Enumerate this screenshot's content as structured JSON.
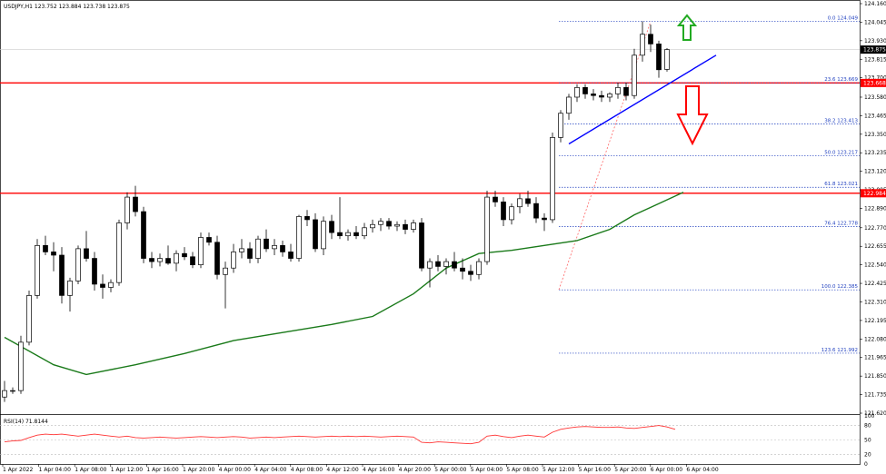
{
  "window": {
    "symbol_header": "USDJPY,H1  123.752 123.884 123.738 123.875",
    "rsi_header": "RSI(14) 71.8144"
  },
  "colors": {
    "background": "#ffffff",
    "grid": "#dddddd",
    "candle_border": "#000000",
    "bull_fill": "#ffffff",
    "bear_fill": "#000000",
    "moving_average": "#1a7a1a",
    "support_resistance": "#ff0000",
    "fib_levels": "#1f3fbf",
    "fib_diagonal": "#ff6666",
    "trendline": "#0000ff",
    "up_arrow": "#22aa22",
    "down_arrow": "#ff0000",
    "price_tag_bg": "#000000",
    "level_tag_bg": "#ff0000",
    "rsi_line": "#ff3333"
  },
  "icons": {
    "up_arrow": "arrow-up-outline-icon",
    "down_arrow": "arrow-down-outline-icon"
  },
  "chart_data": {
    "type": "candlestick",
    "symbol": "USDJPY",
    "timeframe": "H1",
    "ylim": [
      121.62,
      124.16
    ],
    "y_ticks": [
      "124.160",
      "124.045",
      "123.930",
      "123.815",
      "123.700",
      "123.580",
      "123.465",
      "123.350",
      "123.235",
      "123.120",
      "123.005",
      "122.890",
      "122.770",
      "122.655",
      "122.540",
      "122.425",
      "122.310",
      "122.195",
      "122.080",
      "121.965",
      "121.850",
      "121.735",
      "121.620"
    ],
    "x_ticks": [
      "1 Apr 2022",
      "1 Apr 04:00",
      "1 Apr 08:00",
      "1 Apr 12:00",
      "1 Apr 16:00",
      "1 Apr 20:00",
      "4 Apr 00:00",
      "4 Apr 04:00",
      "4 Apr 08:00",
      "4 Apr 12:00",
      "4 Apr 16:00",
      "4 Apr 20:00",
      "5 Apr 00:00",
      "5 Apr 04:00",
      "5 Apr 08:00",
      "5 Apr 12:00",
      "5 Apr 16:00",
      "5 Apr 20:00",
      "6 Apr 00:00",
      "6 Apr 04:00"
    ],
    "candles": [
      {
        "o": 121.72,
        "h": 121.82,
        "l": 121.69,
        "c": 121.76
      },
      {
        "o": 121.76,
        "h": 121.78,
        "l": 121.74,
        "c": 121.76
      },
      {
        "o": 121.76,
        "h": 122.1,
        "l": 121.74,
        "c": 122.06
      },
      {
        "o": 122.06,
        "h": 122.38,
        "l": 122.04,
        "c": 122.35
      },
      {
        "o": 122.35,
        "h": 122.7,
        "l": 122.33,
        "c": 122.66
      },
      {
        "o": 122.66,
        "h": 122.72,
        "l": 122.6,
        "c": 122.62
      },
      {
        "o": 122.62,
        "h": 122.68,
        "l": 122.5,
        "c": 122.6
      },
      {
        "o": 122.6,
        "h": 122.65,
        "l": 122.3,
        "c": 122.35
      },
      {
        "o": 122.35,
        "h": 122.46,
        "l": 122.25,
        "c": 122.44
      },
      {
        "o": 122.44,
        "h": 122.66,
        "l": 122.42,
        "c": 122.64
      },
      {
        "o": 122.64,
        "h": 122.75,
        "l": 122.56,
        "c": 122.58
      },
      {
        "o": 122.58,
        "h": 122.62,
        "l": 122.38,
        "c": 122.42
      },
      {
        "o": 122.42,
        "h": 122.48,
        "l": 122.33,
        "c": 122.4
      },
      {
        "o": 122.4,
        "h": 122.45,
        "l": 122.37,
        "c": 122.43
      },
      {
        "o": 122.43,
        "h": 122.82,
        "l": 122.41,
        "c": 122.8
      },
      {
        "o": 122.8,
        "h": 122.99,
        "l": 122.76,
        "c": 122.96
      },
      {
        "o": 122.96,
        "h": 123.03,
        "l": 122.84,
        "c": 122.87
      },
      {
        "o": 122.87,
        "h": 122.9,
        "l": 122.55,
        "c": 122.58
      },
      {
        "o": 122.58,
        "h": 122.62,
        "l": 122.52,
        "c": 122.56
      },
      {
        "o": 122.56,
        "h": 122.61,
        "l": 122.53,
        "c": 122.58
      },
      {
        "o": 122.58,
        "h": 122.66,
        "l": 122.54,
        "c": 122.55
      },
      {
        "o": 122.55,
        "h": 122.63,
        "l": 122.5,
        "c": 122.61
      },
      {
        "o": 122.61,
        "h": 122.65,
        "l": 122.57,
        "c": 122.59
      },
      {
        "o": 122.59,
        "h": 122.62,
        "l": 122.52,
        "c": 122.54
      },
      {
        "o": 122.54,
        "h": 122.74,
        "l": 122.52,
        "c": 122.71
      },
      {
        "o": 122.71,
        "h": 122.74,
        "l": 122.66,
        "c": 122.68
      },
      {
        "o": 122.68,
        "h": 122.72,
        "l": 122.45,
        "c": 122.48
      },
      {
        "o": 122.48,
        "h": 122.56,
        "l": 122.27,
        "c": 122.52
      },
      {
        "o": 122.52,
        "h": 122.67,
        "l": 122.49,
        "c": 122.62
      },
      {
        "o": 122.62,
        "h": 122.7,
        "l": 122.58,
        "c": 122.64
      },
      {
        "o": 122.64,
        "h": 122.68,
        "l": 122.55,
        "c": 122.58
      },
      {
        "o": 122.58,
        "h": 122.72,
        "l": 122.55,
        "c": 122.7
      },
      {
        "o": 122.7,
        "h": 122.76,
        "l": 122.62,
        "c": 122.64
      },
      {
        "o": 122.64,
        "h": 122.7,
        "l": 122.6,
        "c": 122.66
      },
      {
        "o": 122.66,
        "h": 122.69,
        "l": 122.59,
        "c": 122.62
      },
      {
        "o": 122.62,
        "h": 122.67,
        "l": 122.56,
        "c": 122.58
      },
      {
        "o": 122.58,
        "h": 122.85,
        "l": 122.56,
        "c": 122.84
      },
      {
        "o": 122.84,
        "h": 122.88,
        "l": 122.78,
        "c": 122.82
      },
      {
        "o": 122.82,
        "h": 122.86,
        "l": 122.62,
        "c": 122.64
      },
      {
        "o": 122.64,
        "h": 122.84,
        "l": 122.6,
        "c": 122.81
      },
      {
        "o": 122.81,
        "h": 122.85,
        "l": 122.7,
        "c": 122.74
      },
      {
        "o": 122.74,
        "h": 122.96,
        "l": 122.7,
        "c": 122.72
      },
      {
        "o": 122.72,
        "h": 122.76,
        "l": 122.69,
        "c": 122.74
      },
      {
        "o": 122.74,
        "h": 122.78,
        "l": 122.7,
        "c": 122.72
      },
      {
        "o": 122.72,
        "h": 122.8,
        "l": 122.7,
        "c": 122.77
      },
      {
        "o": 122.77,
        "h": 122.82,
        "l": 122.74,
        "c": 122.79
      },
      {
        "o": 122.79,
        "h": 122.83,
        "l": 122.75,
        "c": 122.81
      },
      {
        "o": 122.81,
        "h": 122.83,
        "l": 122.76,
        "c": 122.78
      },
      {
        "o": 122.78,
        "h": 122.81,
        "l": 122.75,
        "c": 122.79
      },
      {
        "o": 122.79,
        "h": 122.82,
        "l": 122.73,
        "c": 122.76
      },
      {
        "o": 122.76,
        "h": 122.82,
        "l": 122.74,
        "c": 122.8
      },
      {
        "o": 122.8,
        "h": 122.83,
        "l": 122.5,
        "c": 122.52
      },
      {
        "o": 122.52,
        "h": 122.58,
        "l": 122.4,
        "c": 122.56
      },
      {
        "o": 122.56,
        "h": 122.6,
        "l": 122.5,
        "c": 122.53
      },
      {
        "o": 122.53,
        "h": 122.58,
        "l": 122.48,
        "c": 122.56
      },
      {
        "o": 122.56,
        "h": 122.62,
        "l": 122.5,
        "c": 122.52
      },
      {
        "o": 122.52,
        "h": 122.58,
        "l": 122.45,
        "c": 122.5
      },
      {
        "o": 122.5,
        "h": 122.54,
        "l": 122.44,
        "c": 122.48
      },
      {
        "o": 122.48,
        "h": 122.58,
        "l": 122.45,
        "c": 122.56
      },
      {
        "o": 122.56,
        "h": 123.0,
        "l": 122.54,
        "c": 122.96
      },
      {
        "o": 122.96,
        "h": 123.0,
        "l": 122.9,
        "c": 122.93
      },
      {
        "o": 122.93,
        "h": 122.96,
        "l": 122.78,
        "c": 122.82
      },
      {
        "o": 122.82,
        "h": 122.92,
        "l": 122.79,
        "c": 122.9
      },
      {
        "o": 122.9,
        "h": 122.98,
        "l": 122.86,
        "c": 122.95
      },
      {
        "o": 122.95,
        "h": 123.0,
        "l": 122.9,
        "c": 122.92
      },
      {
        "o": 122.92,
        "h": 122.96,
        "l": 122.8,
        "c": 122.83
      },
      {
        "o": 122.83,
        "h": 122.86,
        "l": 122.75,
        "c": 122.82
      },
      {
        "o": 122.82,
        "h": 123.36,
        "l": 122.8,
        "c": 123.33
      },
      {
        "o": 123.33,
        "h": 123.5,
        "l": 123.3,
        "c": 123.48
      },
      {
        "o": 123.48,
        "h": 123.6,
        "l": 123.44,
        "c": 123.58
      },
      {
        "o": 123.58,
        "h": 123.66,
        "l": 123.55,
        "c": 123.64
      },
      {
        "o": 123.64,
        "h": 123.66,
        "l": 123.57,
        "c": 123.6
      },
      {
        "o": 123.6,
        "h": 123.63,
        "l": 123.56,
        "c": 123.59
      },
      {
        "o": 123.59,
        "h": 123.62,
        "l": 123.55,
        "c": 123.58
      },
      {
        "o": 123.58,
        "h": 123.61,
        "l": 123.55,
        "c": 123.6
      },
      {
        "o": 123.6,
        "h": 123.67,
        "l": 123.57,
        "c": 123.64
      },
      {
        "o": 123.64,
        "h": 123.67,
        "l": 123.56,
        "c": 123.59
      },
      {
        "o": 123.59,
        "h": 123.88,
        "l": 123.57,
        "c": 123.84
      },
      {
        "o": 123.84,
        "h": 124.05,
        "l": 123.8,
        "c": 123.97
      },
      {
        "o": 123.97,
        "h": 124.03,
        "l": 123.86,
        "c": 123.91
      },
      {
        "o": 123.91,
        "h": 123.93,
        "l": 123.7,
        "c": 123.75
      },
      {
        "o": 123.752,
        "h": 123.884,
        "l": 123.738,
        "c": 123.875
      }
    ],
    "moving_average": [
      {
        "i": 0,
        "v": 122.09
      },
      {
        "i": 6,
        "v": 121.92
      },
      {
        "i": 10,
        "v": 121.86
      },
      {
        "i": 16,
        "v": 121.92
      },
      {
        "i": 22,
        "v": 121.99
      },
      {
        "i": 28,
        "v": 122.07
      },
      {
        "i": 34,
        "v": 122.12
      },
      {
        "i": 40,
        "v": 122.17
      },
      {
        "i": 45,
        "v": 122.22
      },
      {
        "i": 50,
        "v": 122.36
      },
      {
        "i": 54,
        "v": 122.52
      },
      {
        "i": 58,
        "v": 122.61
      },
      {
        "i": 62,
        "v": 122.63
      },
      {
        "i": 66,
        "v": 122.66
      },
      {
        "i": 70,
        "v": 122.69
      },
      {
        "i": 74,
        "v": 122.76
      },
      {
        "i": 77,
        "v": 122.85
      },
      {
        "i": 80,
        "v": 122.92
      },
      {
        "i": 83,
        "v": 122.99
      }
    ],
    "current_price": "123.875",
    "horizontal_levels": [
      {
        "price": 123.668,
        "label": "123.668"
      },
      {
        "price": 122.984,
        "label": "122.984"
      }
    ],
    "fibonacci": [
      {
        "label": "0.0 124.049",
        "price": 124.049
      },
      {
        "label": "23.6 123.669",
        "price": 123.669
      },
      {
        "label": "38.2 123.413",
        "price": 123.413
      },
      {
        "label": "50.0 123.217",
        "price": 123.217
      },
      {
        "label": "61.8 123.021",
        "price": 123.021
      },
      {
        "label": "76.4 122.778",
        "price": 122.778
      },
      {
        "label": "100.0 122.385",
        "price": 122.385
      },
      {
        "label": "123.6 121.992",
        "price": 121.992
      }
    ],
    "trendline": {
      "from": {
        "i": 69,
        "p": 123.29
      },
      "to": {
        "i": 87,
        "p": 123.84
      }
    },
    "rsi": {
      "ylim": [
        0,
        100
      ],
      "y_ticks": [
        "100",
        "80",
        "50",
        "20",
        "0"
      ],
      "values": [
        46,
        48,
        49,
        55,
        60,
        62,
        61,
        62,
        60,
        58,
        60,
        62,
        60,
        58,
        56,
        58,
        55,
        54,
        55,
        56,
        55,
        54,
        55,
        56,
        57,
        56,
        55,
        56,
        57,
        56,
        54,
        55,
        56,
        55,
        56,
        57,
        58,
        57,
        56,
        57,
        58,
        57,
        58,
        57,
        58,
        57,
        56,
        57,
        58,
        57,
        56,
        45,
        44,
        46,
        45,
        44,
        43,
        42,
        45,
        58,
        60,
        57,
        55,
        58,
        60,
        58,
        56,
        66,
        72,
        75,
        77,
        78,
        77,
        76,
        76,
        77,
        75,
        74,
        76,
        78,
        80,
        77,
        72
      ]
    }
  }
}
